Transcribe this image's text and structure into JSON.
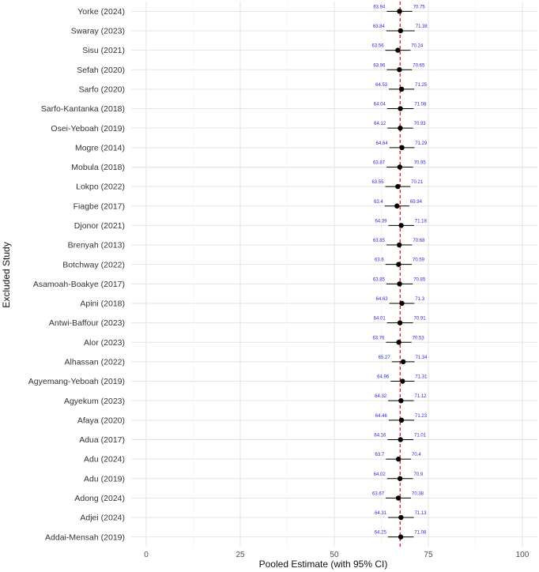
{
  "chart_data": {
    "type": "forest",
    "xlabel": "Pooled Estimate (with 95% CI)",
    "ylabel": "Excluded Study",
    "xlim": [
      -4,
      104
    ],
    "xticks": [
      0,
      25,
      50,
      75,
      100
    ],
    "reference_line": 67.5,
    "colors": {
      "point": "#000000",
      "ci_label": "#2b2bd6",
      "reference": "#e41a1c",
      "grid": "#e5e5e5"
    },
    "studies": [
      {
        "name": "Yorke (2024)",
        "lower": 63.94,
        "upper": 70.75,
        "estimate": 67.35
      },
      {
        "name": "Swaray (2023)",
        "lower": 63.84,
        "upper": 71.38,
        "estimate": 67.61
      },
      {
        "name": "Sisu (2021)",
        "lower": 63.56,
        "upper": 70.24,
        "estimate": 66.9
      },
      {
        "name": "Sefah (2020)",
        "lower": 63.96,
        "upper": 70.65,
        "estimate": 67.31
      },
      {
        "name": "Sarfo (2020)",
        "lower": 64.53,
        "upper": 71.25,
        "estimate": 67.89
      },
      {
        "name": "Sarfo-Kantanka (2018)",
        "lower": 64.04,
        "upper": 71.08,
        "estimate": 67.56
      },
      {
        "name": "Osei-Yeboah (2019)",
        "lower": 64.12,
        "upper": 70.93,
        "estimate": 67.53
      },
      {
        "name": "Mogre (2014)",
        "lower": 64.64,
        "upper": 71.29,
        "estimate": 67.97
      },
      {
        "name": "Mobula (2018)",
        "lower": 63.87,
        "upper": 70.95,
        "estimate": 67.41
      },
      {
        "name": "Lokpo (2022)",
        "lower": 63.55,
        "upper": 70.21,
        "estimate": 66.88
      },
      {
        "name": "Fiagbe (2017)",
        "lower": 63.4,
        "upper": 69.94,
        "estimate": 66.67
      },
      {
        "name": "Djonor (2021)",
        "lower": 64.39,
        "upper": 71.18,
        "estimate": 67.79
      },
      {
        "name": "Brenyah (2013)",
        "lower": 63.85,
        "upper": 70.68,
        "estimate": 67.27
      },
      {
        "name": "Botchway (2022)",
        "lower": 63.6,
        "upper": 70.59,
        "estimate": 67.1
      },
      {
        "name": "Asamoah-Boakye (2017)",
        "lower": 63.85,
        "upper": 70.85,
        "estimate": 67.35
      },
      {
        "name": "Apini (2018)",
        "lower": 64.63,
        "upper": 71.3,
        "estimate": 67.97
      },
      {
        "name": "Antwi-Baffour (2023)",
        "lower": 64.01,
        "upper": 70.91,
        "estimate": 67.46
      },
      {
        "name": "Alor (2023)",
        "lower": 63.76,
        "upper": 70.53,
        "estimate": 67.15
      },
      {
        "name": "Alhassan (2022)",
        "lower": 65.27,
        "upper": 71.34,
        "estimate": 68.31
      },
      {
        "name": "Agyemang-Yeboah (2019)",
        "lower": 64.96,
        "upper": 71.31,
        "estimate": 68.14
      },
      {
        "name": "Agyekum (2023)",
        "lower": 64.32,
        "upper": 71.12,
        "estimate": 67.72
      },
      {
        "name": "Afaya (2020)",
        "lower": 64.46,
        "upper": 71.23,
        "estimate": 67.85
      },
      {
        "name": "Adua (2017)",
        "lower": 64.16,
        "upper": 71.01,
        "estimate": 67.59
      },
      {
        "name": "Adu (2024)",
        "lower": 63.7,
        "upper": 70.4,
        "estimate": 67.05
      },
      {
        "name": "Adu (2019)",
        "lower": 64.02,
        "upper": 70.9,
        "estimate": 67.46
      },
      {
        "name": "Adong (2024)",
        "lower": 63.67,
        "upper": 70.38,
        "estimate": 67.03
      },
      {
        "name": "Adjei (2024)",
        "lower": 64.31,
        "upper": 71.13,
        "estimate": 67.72
      },
      {
        "name": "Addai-Mensah (2019)",
        "lower": 64.25,
        "upper": 71.08,
        "estimate": 67.67
      }
    ]
  }
}
